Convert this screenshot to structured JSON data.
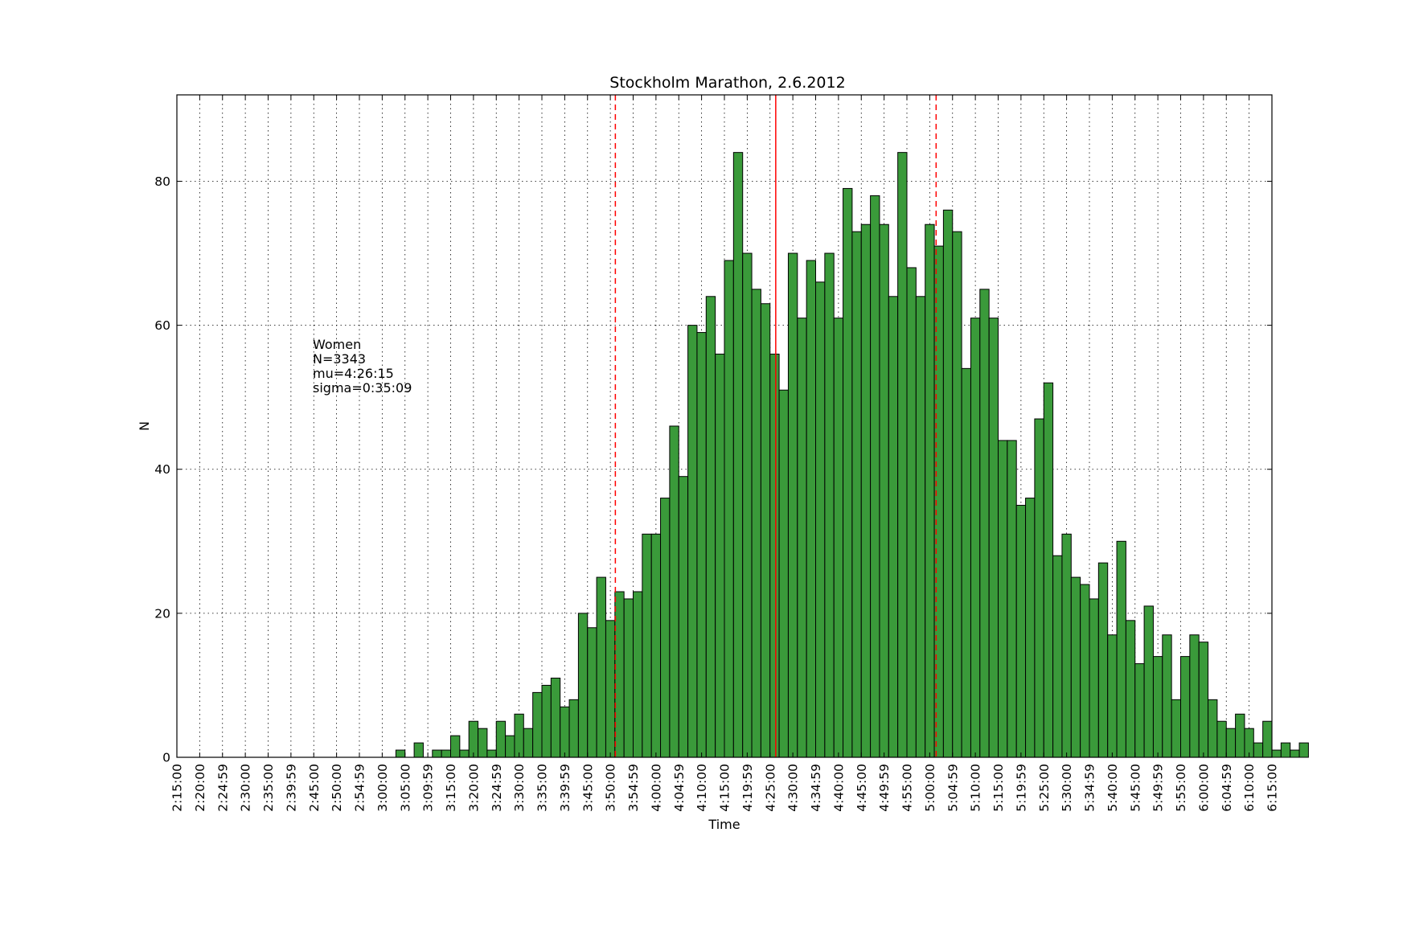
{
  "chart_data": {
    "type": "bar",
    "title": "Stockholm Marathon, 2.6.2012",
    "xlabel": "Time",
    "ylabel": "N",
    "xlim_minutes": [
      135,
      375
    ],
    "ylim": [
      0,
      92
    ],
    "y_ticks": [
      0,
      20,
      40,
      60,
      80
    ],
    "bin_minutes": 2,
    "bin_start_minutes": 135,
    "grid": true,
    "x_tick_labels": [
      "2:15:00",
      "2:20:00",
      "2:24:59",
      "2:30:00",
      "2:35:00",
      "2:39:59",
      "2:45:00",
      "2:50:00",
      "2:54:59",
      "3:00:00",
      "3:05:00",
      "3:09:59",
      "3:15:00",
      "3:20:00",
      "3:24:59",
      "3:30:00",
      "3:35:00",
      "3:39:59",
      "3:45:00",
      "3:50:00",
      "3:54:59",
      "4:00:00",
      "4:04:59",
      "4:10:00",
      "4:15:00",
      "4:19:59",
      "4:25:00",
      "4:30:00",
      "4:34:59",
      "4:40:00",
      "4:45:00",
      "4:49:59",
      "4:55:00",
      "5:00:00",
      "5:04:59",
      "5:10:00",
      "5:15:00",
      "5:19:59",
      "5:25:00",
      "5:30:00",
      "5:34:59",
      "5:40:00",
      "5:45:00",
      "5:49:59",
      "5:55:00",
      "6:00:00",
      "6:04:59",
      "6:10:00",
      "6:15:00"
    ],
    "values": [
      0,
      0,
      0,
      0,
      0,
      0,
      0,
      0,
      0,
      0,
      0,
      0,
      0,
      0,
      0,
      0,
      0,
      0,
      0,
      0,
      0,
      0,
      0,
      0,
      1,
      0,
      2,
      0,
      1,
      1,
      3,
      1,
      5,
      4,
      1,
      5,
      3,
      6,
      4,
      9,
      10,
      11,
      7,
      8,
      20,
      18,
      25,
      19,
      23,
      22,
      23,
      31,
      31,
      36,
      46,
      39,
      60,
      59,
      64,
      56,
      69,
      84,
      70,
      65,
      63,
      56,
      51,
      70,
      61,
      69,
      66,
      70,
      61,
      79,
      73,
      74,
      78,
      74,
      64,
      84,
      68,
      64,
      74,
      71,
      76,
      73,
      54,
      61,
      65,
      61,
      44,
      44,
      35,
      36,
      47,
      52,
      28,
      31,
      25,
      24,
      22,
      27,
      17,
      30,
      19,
      13,
      21,
      14,
      17,
      8,
      14,
      17,
      16,
      8,
      5,
      4,
      6,
      4,
      2,
      5,
      1,
      2,
      1,
      2
    ],
    "bar_color": "#3a9a3a",
    "mean_minutes": 266.25,
    "sigma_minutes": 35.15,
    "mean_line_color": "#ff0000",
    "annotation": [
      "Women",
      "N=3343",
      "mu=4:26:15",
      "sigma=0:35:09"
    ]
  }
}
